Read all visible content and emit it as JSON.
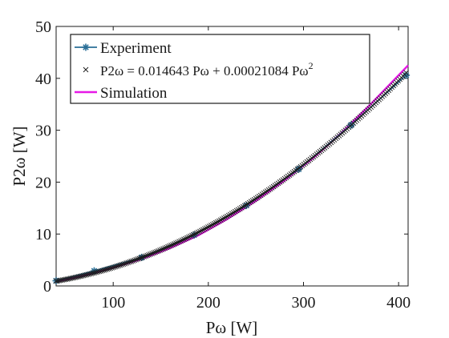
{
  "chart_data": {
    "type": "line",
    "xlabel": "Pω [W]",
    "ylabel": "P2ω [W]",
    "xlim": [
      40,
      410
    ],
    "ylim": [
      0,
      50
    ],
    "xticks": [
      100,
      200,
      300,
      400
    ],
    "yticks": [
      0,
      10,
      20,
      30,
      40,
      50
    ],
    "grid": false,
    "legend_placement": "top-left",
    "series": [
      {
        "name": "Experiment",
        "style": "line-with-star-markers",
        "color": "#2a6f97",
        "x": [
          40,
          80,
          130,
          185,
          240,
          295,
          350,
          408
        ],
        "y": [
          1.0,
          2.9,
          5.5,
          9.8,
          15.5,
          22.5,
          31.0,
          40.6
        ]
      },
      {
        "name": "P2ω = 0.014643 Pω + 0.00021084 Pω",
        "name_superscript": "2",
        "style": "cross-markers",
        "color": "#1a1a1a",
        "fit": {
          "a": 0.014643,
          "b": 0.00021084
        },
        "x_range": [
          40,
          408
        ],
        "n_points": 220
      },
      {
        "name": "Simulation",
        "style": "line",
        "color": "#e619e6",
        "x": [
          40,
          60,
          80,
          100,
          130,
          160,
          190,
          220,
          250,
          280,
          310,
          340,
          370,
          410
        ],
        "y": [
          0.8,
          1.6,
          2.5,
          3.5,
          5.2,
          7.3,
          9.8,
          12.9,
          16.4,
          20.3,
          24.6,
          29.5,
          34.9,
          42.5
        ]
      }
    ]
  }
}
